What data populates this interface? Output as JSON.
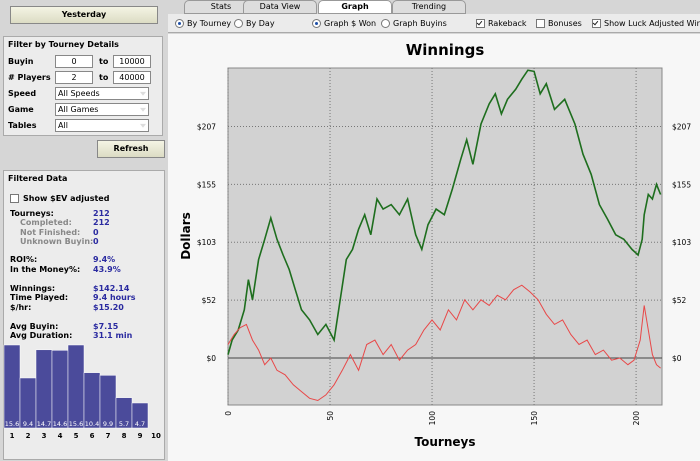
{
  "left_panel": {
    "date_button": "Yesterday",
    "filter": {
      "title": "Filter by Tourney Details",
      "ranges": [
        {
          "label": "Buyin",
          "from": "0",
          "to_label": "to",
          "to": "10000"
        },
        {
          "label": "# Players",
          "from": "2",
          "to_label": "to",
          "to": "40000"
        }
      ],
      "selects": [
        {
          "label": "Speed",
          "value": "All Speeds"
        },
        {
          "label": "Game",
          "value": "All Games"
        },
        {
          "label": "Tables",
          "value": "All"
        }
      ]
    },
    "refresh_button": "Refresh",
    "filtered": {
      "title": "Filtered Data",
      "ev_checkbox": "Show $EV adjusted",
      "stats": [
        {
          "label": "Tourneys:",
          "value": "212"
        },
        {
          "label": "Completed:",
          "value": "212"
        },
        {
          "label": "Not Finished:",
          "value": "0"
        },
        {
          "label": "Unknown Buyin:",
          "value": "0"
        },
        {
          "label": "ROI%:",
          "value": "9.4%"
        },
        {
          "label": "In the Money%:",
          "value": "43.9%"
        },
        {
          "label": "Winnings:",
          "value": "$142.14"
        },
        {
          "label": "Time Played:",
          "value": "9.4 hours"
        },
        {
          "label": "$/hr:",
          "value": "$15.20"
        },
        {
          "label": "Avg Buyin:",
          "value": "$7.15"
        },
        {
          "label": "Avg Duration:",
          "value": "31.1 min"
        }
      ]
    }
  },
  "tabs": [
    {
      "label": "Stats",
      "active": false
    },
    {
      "label": "Data View",
      "active": false
    },
    {
      "label": "Graph",
      "active": true
    },
    {
      "label": "Trending",
      "active": false
    }
  ],
  "options": [
    {
      "kind": "radio",
      "label": "By Tourney",
      "checked": true
    },
    {
      "kind": "radio",
      "label": "By Day",
      "checked": false
    },
    {
      "kind": "radio",
      "label": "Graph $ Won",
      "checked": true
    },
    {
      "kind": "radio",
      "label": "Graph Buyins",
      "checked": false
    },
    {
      "kind": "checkbox",
      "label": "Rakeback",
      "checked": true
    },
    {
      "kind": "checkbox",
      "label": "Bonuses",
      "checked": false
    },
    {
      "kind": "checkbox",
      "label": "Show Luck Adjusted Win",
      "checked": true
    }
  ],
  "chart_data": [
    {
      "type": "line",
      "title": "Winnings",
      "x_label": "Tourneys",
      "y_label": "Dollars",
      "grid": true,
      "xlim": [
        0,
        212.7
      ],
      "xticks": [
        0,
        50,
        100,
        150,
        200
      ],
      "ylim": [
        -42,
        259
      ],
      "yticks": [
        {
          "value": 0,
          "label": "$0"
        },
        {
          "value": 51.7,
          "label": "$52"
        },
        {
          "value": 103.4,
          "label": "$103"
        },
        {
          "value": 155.1,
          "label": "$155"
        },
        {
          "value": 206.8,
          "label": "$207"
        }
      ],
      "series": [
        {
          "color": "#1e6e1e",
          "x": [
            0,
            2,
            5,
            8,
            10,
            12,
            15,
            18,
            21,
            24,
            27,
            30,
            33,
            36,
            40,
            44,
            48,
            52,
            55,
            58,
            61,
            64,
            67,
            70,
            73,
            76,
            80,
            84,
            88,
            92,
            95,
            98,
            102,
            106,
            110,
            114,
            117,
            120,
            124,
            128,
            131,
            134,
            137,
            141,
            144,
            147,
            150,
            153,
            156,
            160,
            165,
            170,
            174,
            178,
            182,
            186,
            190,
            194,
            198,
            201,
            203,
            204,
            206,
            208,
            210,
            212
          ],
          "values": [
            3,
            16,
            25,
            43,
            70,
            52,
            88,
            106,
            125,
            106,
            92,
            79,
            61,
            43,
            34,
            21,
            30,
            16,
            52,
            88,
            97,
            115,
            128,
            110,
            142,
            133,
            137,
            128,
            142,
            110,
            97,
            119,
            133,
            128,
            151,
            177,
            195,
            173,
            209,
            227,
            236,
            218,
            231,
            240,
            249,
            257,
            256,
            236,
            245,
            222,
            231,
            209,
            182,
            164,
            137,
            124,
            110,
            106,
            97,
            92,
            106,
            128,
            146,
            142,
            155,
            146
          ]
        },
        {
          "color": "#e84848",
          "x": [
            0,
            3,
            6,
            9,
            12,
            15,
            18,
            21,
            24,
            28,
            32,
            36,
            40,
            44,
            48,
            52,
            56,
            60,
            64,
            68,
            72,
            76,
            80,
            84,
            88,
            92,
            96,
            100,
            104,
            108,
            112,
            116,
            120,
            124,
            128,
            132,
            136,
            140,
            144,
            148,
            152,
            156,
            160,
            164,
            168,
            172,
            176,
            180,
            184,
            188,
            192,
            196,
            199,
            202,
            204,
            206,
            208,
            210,
            212
          ],
          "values": [
            12,
            21,
            27,
            30,
            16,
            7,
            -6,
            0,
            -11,
            -15,
            -24,
            -30,
            -36,
            -38,
            -33,
            -24,
            -11,
            3,
            -11,
            12,
            16,
            3,
            12,
            -2,
            7,
            12,
            25,
            34,
            25,
            43,
            34,
            52,
            43,
            52,
            47,
            56,
            52,
            61,
            65,
            59,
            52,
            39,
            30,
            34,
            21,
            12,
            16,
            3,
            7,
            -2,
            0,
            -6,
            -2,
            16,
            47,
            25,
            3,
            -6,
            -9
          ]
        }
      ]
    },
    {
      "type": "bar",
      "color": "#4b4b9b",
      "categories": [
        "1",
        "2",
        "3",
        "4",
        "5",
        "6",
        "7",
        "8",
        "9",
        "10"
      ],
      "values": [
        15.6,
        9.4,
        14.7,
        14.6,
        15.6,
        10.4,
        9.9,
        5.7,
        4.7,
        null
      ]
    }
  ]
}
